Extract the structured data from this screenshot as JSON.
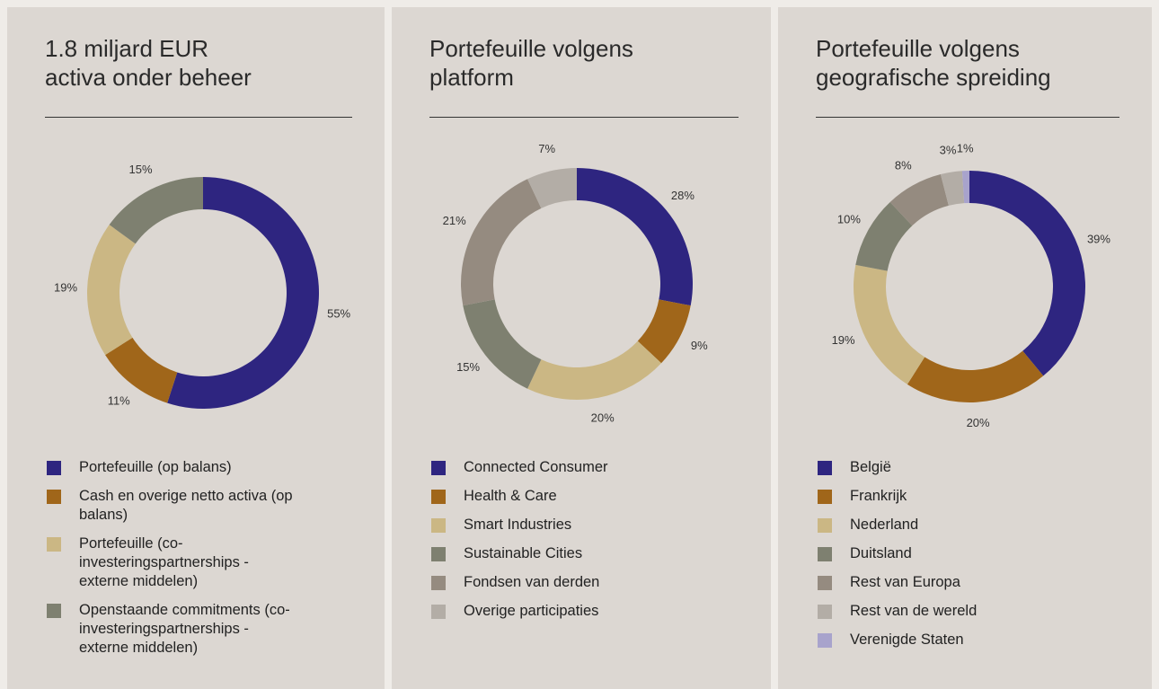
{
  "chart_data": [
    {
      "type": "pie",
      "donut": true,
      "title": [
        "1.8 miljard EUR",
        "activa onder beheer"
      ],
      "categories": [
        "Portefeuille (op balans)",
        "Cash en overige netto activa (op balans)",
        "Portefeuille (co-investeringspartnerships - externe middelen)",
        "Openstaande commitments (co-investeringspartnerships - externe middelen)"
      ],
      "values": [
        55,
        11,
        19,
        15
      ],
      "value_labels": [
        "55%",
        "11%",
        "19%",
        "15%"
      ],
      "colors": [
        "#2e2580",
        "#a0661a",
        "#cbb784",
        "#7e8070"
      ]
    },
    {
      "type": "pie",
      "donut": true,
      "title": [
        "Portefeuille volgens",
        "platform"
      ],
      "categories": [
        "Connected Consumer",
        "Health & Care",
        "Smart Industries",
        "Sustainable Cities",
        "Fondsen van derden",
        "Overige participaties"
      ],
      "values": [
        28,
        9,
        20,
        15,
        21,
        7
      ],
      "value_labels": [
        "28%",
        "9%",
        "20%",
        "15%",
        "21%",
        "7%"
      ],
      "colors": [
        "#2e2580",
        "#a0661a",
        "#cbb784",
        "#7e8070",
        "#958b80",
        "#b3ada6"
      ]
    },
    {
      "type": "pie",
      "donut": true,
      "title": [
        "Portefeuille volgens",
        "geografische spreiding"
      ],
      "categories": [
        "België",
        "Frankrijk",
        "Nederland",
        "Duitsland",
        "Rest van Europa",
        "Rest van de wereld",
        "Verenigde Staten"
      ],
      "values": [
        39,
        20,
        19,
        10,
        8,
        3,
        1
      ],
      "value_labels": [
        "39%",
        "20%",
        "19%",
        "10%",
        "8%",
        "3%",
        "1%"
      ],
      "colors": [
        "#2e2580",
        "#a0661a",
        "#cbb784",
        "#7e8070",
        "#958b80",
        "#b3ada6",
        "#a8a3cc"
      ]
    }
  ]
}
